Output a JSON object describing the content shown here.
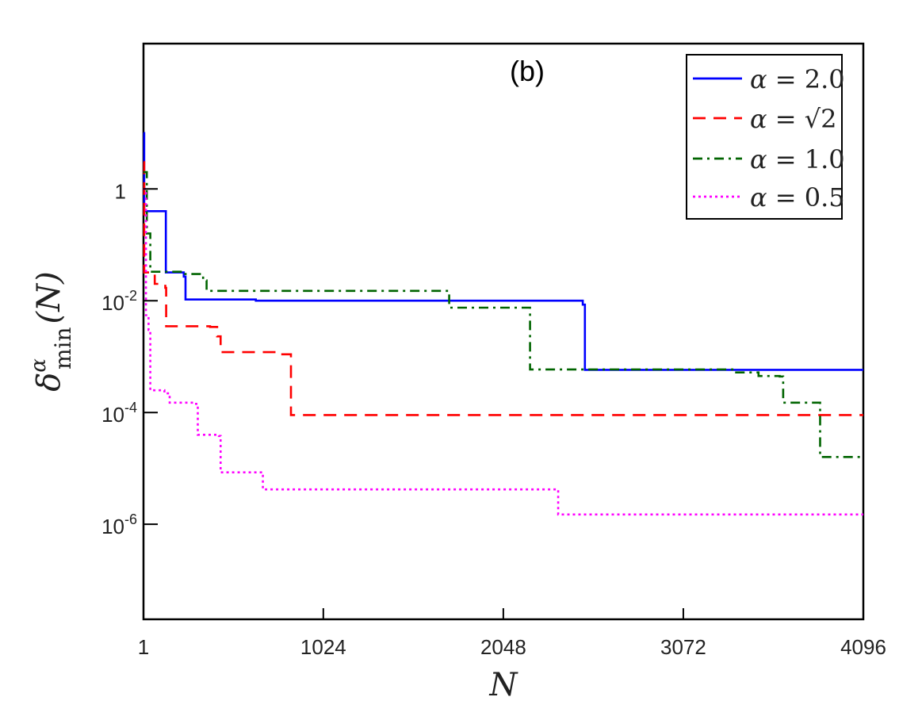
{
  "chart_data": {
    "type": "line",
    "subtype": "step",
    "panel_label": "(b)",
    "xlabel": "N",
    "ylabel": {
      "symbol": "δ",
      "superscript": "α",
      "subscript": "min",
      "argument": "(N)"
    },
    "x_scale": "linear",
    "y_scale": "log",
    "xlim": [
      1,
      4096
    ],
    "ylim_log10": [
      -7.7,
      2.6
    ],
    "x_ticks": [
      {
        "value": 1,
        "label": "1"
      },
      {
        "value": 1024,
        "label": "1024"
      },
      {
        "value": 2048,
        "label": "2048"
      },
      {
        "value": 3072,
        "label": "3072"
      },
      {
        "value": 4096,
        "label": "4096"
      }
    ],
    "y_ticks": [
      {
        "log10": 0,
        "base": "1",
        "exp": ""
      },
      {
        "log10": -2,
        "base": "10",
        "exp": "-2"
      },
      {
        "log10": -4,
        "base": "10",
        "exp": "-4"
      },
      {
        "log10": -6,
        "base": "10",
        "exp": "-6"
      }
    ],
    "legend_position": "top-right",
    "series": [
      {
        "name": "α = 2.0",
        "alpha_label": "α",
        "value_label": "2.0",
        "color": "#0000ff",
        "dash": "solid",
        "points": [
          [
            1,
            10.0
          ],
          [
            5,
            0.4
          ],
          [
            120,
            0.4
          ],
          [
            128,
            0.032
          ],
          [
            230,
            0.027
          ],
          [
            240,
            0.0105
          ],
          [
            640,
            0.01
          ],
          [
            2450,
            0.01
          ],
          [
            2500,
            0.0085
          ],
          [
            2512,
            0.00058
          ],
          [
            4096,
            0.00058
          ]
        ]
      },
      {
        "name": "α = √2",
        "alpha_label": "α",
        "value_label": "√2",
        "color": "#ff0000",
        "dash": "dashed",
        "points": [
          [
            1,
            3.0
          ],
          [
            5,
            0.032
          ],
          [
            60,
            0.032
          ],
          [
            65,
            0.02
          ],
          [
            125,
            0.017
          ],
          [
            130,
            0.0035
          ],
          [
            380,
            0.0034
          ],
          [
            420,
            0.0023
          ],
          [
            440,
            0.0012
          ],
          [
            780,
            0.0011
          ],
          [
            830,
            0.0011
          ],
          [
            840,
            9e-05
          ],
          [
            4096,
            9e-05
          ]
        ]
      },
      {
        "name": "α = 1.0",
        "alpha_label": "α",
        "value_label": "1.0",
        "color": "#006400",
        "dash": "dashdot",
        "points": [
          [
            1,
            2.0
          ],
          [
            20,
            0.16
          ],
          [
            40,
            0.033
          ],
          [
            220,
            0.03
          ],
          [
            340,
            0.023
          ],
          [
            360,
            0.015
          ],
          [
            1730,
            0.015
          ],
          [
            1740,
            0.0075
          ],
          [
            2180,
            0.0075
          ],
          [
            2200,
            0.00059
          ],
          [
            3360,
            0.00052
          ],
          [
            3500,
            0.00045
          ],
          [
            3620,
            0.00044
          ],
          [
            3640,
            0.00015
          ],
          [
            3830,
            0.00015
          ],
          [
            3850,
            1.6e-05
          ],
          [
            4096,
            1.6e-05
          ]
        ]
      },
      {
        "name": "α = 0.5",
        "alpha_label": "α",
        "value_label": "0.5",
        "color": "#ff00ff",
        "dash": "dotted",
        "points": [
          [
            1,
            1.0
          ],
          [
            15,
            0.0055
          ],
          [
            30,
            0.003
          ],
          [
            40,
            0.00025
          ],
          [
            120,
            0.00022
          ],
          [
            150,
            0.00015
          ],
          [
            300,
            0.000143
          ],
          [
            310,
            4e-05
          ],
          [
            430,
            3.8e-05
          ],
          [
            440,
            8.5e-06
          ],
          [
            660,
            8.5e-06
          ],
          [
            680,
            4.2e-06
          ],
          [
            2340,
            4.2e-06
          ],
          [
            2360,
            1.5e-06
          ],
          [
            4096,
            1.5e-06
          ]
        ]
      }
    ]
  }
}
